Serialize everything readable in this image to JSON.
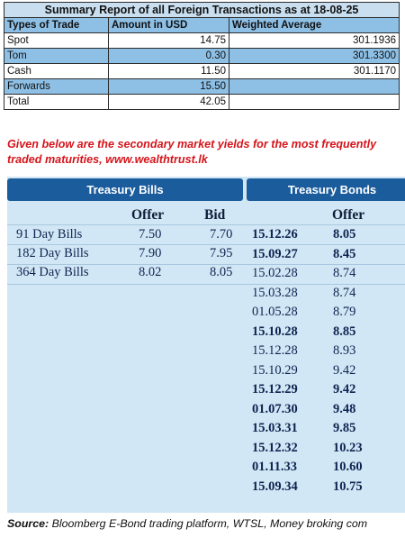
{
  "summary": {
    "title": "Summary Report of all Foreign Transactions as at 18-08-25",
    "headers": [
      "Types of Trade",
      "Amount in USD",
      "Weighted Average"
    ],
    "rows": [
      {
        "type": "Spot",
        "amount": "14.75",
        "avg": "301.1936"
      },
      {
        "type": "Tom",
        "amount": "0.30",
        "avg": "301.3300"
      },
      {
        "type": "Cash",
        "amount": "11.50",
        "avg": "301.1170"
      },
      {
        "type": "Forwards",
        "amount": "15.50",
        "avg": ""
      },
      {
        "type": "Total",
        "amount": "42.05",
        "avg": ""
      }
    ]
  },
  "heading": {
    "line1": "Given below are the secondary market yields for the most frequently",
    "line2": "traded maturities, www.wealthtrust.lk"
  },
  "yields": {
    "bills_title": "Treasury Bills",
    "bonds_title": "Treasury Bonds",
    "offer_label": "Offer",
    "bid_label": "Bid",
    "bills": [
      {
        "name": "91 Day Bills",
        "offer": "7.50",
        "bid": "7.70"
      },
      {
        "name": "182 Day Bills",
        "offer": "7.90",
        "bid": "7.95"
      },
      {
        "name": "364 Day Bills",
        "offer": "8.02",
        "bid": "8.05"
      }
    ],
    "bonds": [
      {
        "maturity": "15.12.26",
        "offer": "8.05",
        "bold": true
      },
      {
        "maturity": "15.09.27",
        "offer": "8.45",
        "bold": true
      },
      {
        "maturity": "15.02.28",
        "offer": "8.74",
        "bold": false
      },
      {
        "maturity": "15.03.28",
        "offer": "8.74",
        "bold": false
      },
      {
        "maturity": "01.05.28",
        "offer": "8.79",
        "bold": false
      },
      {
        "maturity": "15.10.28",
        "offer": "8.85",
        "bold": true
      },
      {
        "maturity": "15.12.28",
        "offer": "8.93",
        "bold": false
      },
      {
        "maturity": "15.10.29",
        "offer": "9.42",
        "bold": false
      },
      {
        "maturity": "15.12.29",
        "offer": "9.42",
        "bold": true
      },
      {
        "maturity": "01.07.30",
        "offer": "9.48",
        "bold": true
      },
      {
        "maturity": "15.03.31",
        "offer": "9.85",
        "bold": true
      },
      {
        "maturity": "15.12.32",
        "offer": "10.23",
        "bold": true
      },
      {
        "maturity": "01.11.33",
        "offer": "10.60",
        "bold": true
      },
      {
        "maturity": "15.09.34",
        "offer": "10.75",
        "bold": true
      }
    ]
  },
  "source": {
    "label": "Source:",
    "text": " Bloomberg E-Bond trading platform, WTSL, Money broking com"
  }
}
